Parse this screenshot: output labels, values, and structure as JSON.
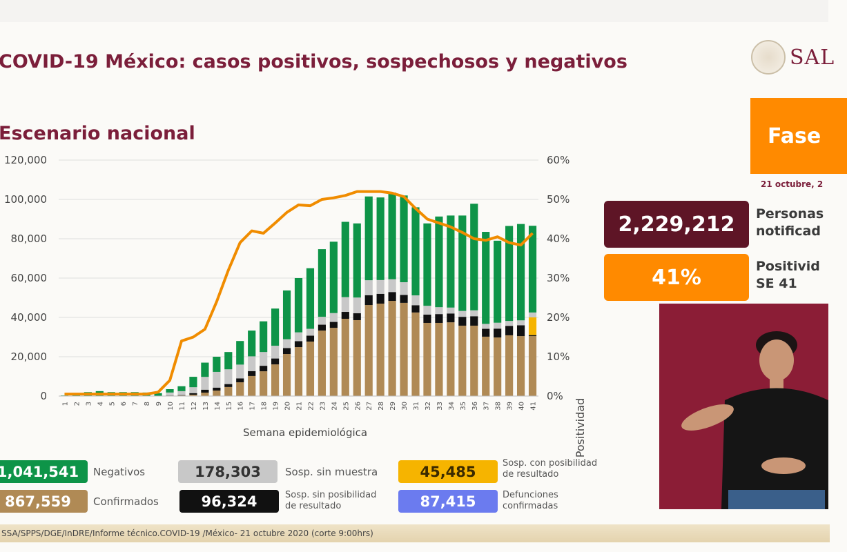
{
  "header": {
    "title": "COVID-19 México: casos positivos, sospechosos y negativos",
    "subtitle": "Escenario nacional",
    "logo_text": "SAL"
  },
  "sidebar": {
    "phase_label": "Fase",
    "date": "21 octubre, 2",
    "notified_value": "2,229,212",
    "notified_label_1": "Personas",
    "notified_label_2": "notificad",
    "positivity_value": "41%",
    "positivity_label_1": "Positivid",
    "positivity_label_2": "SE 41"
  },
  "colors": {
    "title": "#7b1e3a",
    "negatives": "#0e9448",
    "confirmed": "#b08a55",
    "sosp_sin_muestra": "#c8c8c8",
    "sosp_sin_posibilidad": "#111111",
    "sosp_con_posibilidad": "#f6b400",
    "defunciones": "#6b7bef",
    "positivity_line": "#f08c00"
  },
  "stats": [
    {
      "value": "1,041,541",
      "label": "Negativos"
    },
    {
      "value": "867,559",
      "label": "Confirmados"
    },
    {
      "value": "178,303",
      "label": "Sosp. sin muestra"
    },
    {
      "value": "96,324",
      "label_1": "Sosp. sin posibilidad",
      "label_2": "de resultado"
    },
    {
      "value": "45,485",
      "label_1": "Sosp. con posibilidad",
      "label_2": "de resultado"
    },
    {
      "value": "87,415",
      "label_1": "Defunciones",
      "label_2": "confirmadas"
    }
  ],
  "footer": "SSA/SPPS/DGE/InDRE/Informe técnico.COVID-19 /México- 21 octubre 2020 (corte 9:00hrs)",
  "chart_data": {
    "type": "bar",
    "stacked": true,
    "xlabel": "Semana epidemiológica",
    "ylabel_right": "Positividad",
    "ylim": [
      0,
      120000
    ],
    "y_ticks": [
      "0",
      "20,000",
      "40,000",
      "60,000",
      "80,000",
      "100,000",
      "120,000"
    ],
    "y2lim": [
      0,
      60
    ],
    "y2_ticks": [
      "0%",
      "10%",
      "20%",
      "30%",
      "40%",
      "50%",
      "60%"
    ],
    "grid": true,
    "categories": [
      "1",
      "2",
      "3",
      "4",
      "5",
      "6",
      "7",
      "8",
      "9",
      "10",
      "11",
      "12",
      "13",
      "14",
      "15",
      "16",
      "17",
      "18",
      "19",
      "20",
      "21",
      "22",
      "23",
      "24",
      "25",
      "26",
      "27",
      "28",
      "29",
      "30",
      "31",
      "32",
      "33",
      "34",
      "35",
      "36",
      "37",
      "38",
      "39",
      "40",
      "41"
    ],
    "series": [
      {
        "name": "Confirmados",
        "color": "#b08a55",
        "values": [
          0,
          0,
          0,
          0,
          0,
          0,
          0,
          0,
          50,
          200,
          300,
          700,
          1750,
          2800,
          4600,
          7000,
          10200,
          12600,
          16100,
          21400,
          24900,
          27700,
          33300,
          34700,
          39300,
          38600,
          46300,
          47000,
          48400,
          47400,
          42500,
          37200,
          37200,
          37500,
          35800,
          35800,
          30200,
          29800,
          30900,
          30500,
          30500
        ]
      },
      {
        "name": "Sosp. sin posibilidad de resultado",
        "color": "#111111",
        "values": [
          0,
          0,
          0,
          0,
          0,
          0,
          0,
          0,
          0,
          100,
          200,
          800,
          1500,
          1500,
          1500,
          2000,
          2500,
          2800,
          3000,
          3000,
          3000,
          3000,
          3000,
          3000,
          3500,
          3500,
          5000,
          5000,
          4500,
          4000,
          3700,
          4200,
          4500,
          4500,
          4500,
          4800,
          4000,
          4500,
          4800,
          5500,
          500
        ]
      },
      {
        "name": "Sosp. con posibilidad de resultado",
        "color": "#f6b400",
        "values": [
          0,
          0,
          0,
          0,
          0,
          0,
          0,
          0,
          0,
          0,
          0,
          0,
          0,
          0,
          0,
          0,
          0,
          0,
          0,
          0,
          0,
          0,
          0,
          0,
          0,
          0,
          0,
          0,
          0,
          0,
          0,
          0,
          0,
          0,
          0,
          0,
          0,
          0,
          0,
          0,
          9000
        ]
      },
      {
        "name": "Sosp. sin muestra",
        "color": "#c8c8c8",
        "values": [
          0,
          0,
          0,
          0,
          0,
          0,
          0,
          0,
          100,
          1500,
          2000,
          3000,
          6500,
          8000,
          7500,
          7000,
          7500,
          7000,
          6500,
          4500,
          4500,
          3500,
          4000,
          4500,
          7500,
          8000,
          7600,
          7000,
          6500,
          6500,
          5000,
          4500,
          3500,
          3000,
          3000,
          3000,
          2500,
          3000,
          2500,
          2500,
          2500
        ]
      },
      {
        "name": "Negativos",
        "color": "#0e9448",
        "values": [
          300,
          1500,
          2000,
          2500,
          2000,
          2000,
          2000,
          1800,
          1350,
          1700,
          2500,
          5300,
          7250,
          7700,
          8800,
          12000,
          13100,
          15600,
          18900,
          24800,
          27600,
          30800,
          34400,
          36300,
          38300,
          37700,
          42600,
          42000,
          44100,
          44100,
          44800,
          41900,
          46100,
          46800,
          48500,
          54200,
          46800,
          41700,
          48300,
          49000,
          44100
        ]
      }
    ],
    "line": {
      "name": "Positividad",
      "axis": "right",
      "unit": "%",
      "color": "#f08c00",
      "values": [
        0.5,
        0.5,
        0.5,
        0.5,
        0.5,
        0.5,
        0.5,
        0.5,
        1,
        4,
        14,
        15,
        17,
        24,
        32,
        39,
        42,
        41.4,
        44,
        46.7,
        48.6,
        48.4,
        50,
        50.4,
        51,
        52,
        52,
        52,
        51.6,
        50.7,
        47.7,
        45,
        44,
        43,
        41.6,
        40,
        39.6,
        40.5,
        39,
        38.4,
        41.4
      ]
    }
  }
}
